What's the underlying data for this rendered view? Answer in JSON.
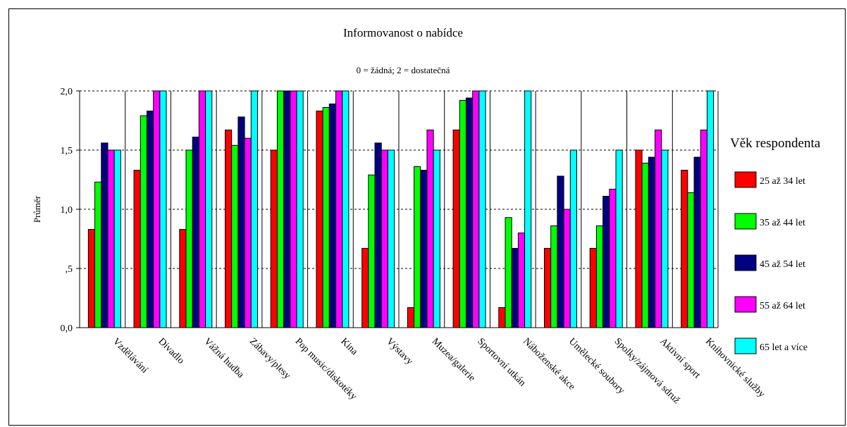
{
  "chart_data": {
    "type": "bar",
    "title": "Informovanost o nabídce",
    "subtitle": "0 = žádná; 2 = dostatečná",
    "ylabel": "Průměr",
    "xlabel": "",
    "ylim": [
      0,
      2
    ],
    "yticks": [
      0,
      0.5,
      1,
      1.5,
      2
    ],
    "ytick_labels": [
      "0,0",
      ",5",
      "1,0",
      "1,5",
      "2,0"
    ],
    "grid": "horizontal-dashed",
    "legend_title": "Věk respondenta",
    "legend_position": "right",
    "categories": [
      "Vzdělávání",
      "Divadlo",
      "Vážná hudba",
      "Zábavy/plesy",
      "Pop music/diskotéky",
      "Kina",
      "Výstavy",
      "Muzea/galerie",
      "Sportovní utkán",
      "Náboženské akce",
      "Umělecké soubory",
      "Spolky/zájmová sdruž",
      "Aktivní sport",
      "Knihovnické služby"
    ],
    "series": [
      {
        "name": "25 až 34 let",
        "color": "#ff0000",
        "values": [
          0.83,
          1.33,
          0.83,
          1.67,
          1.5,
          1.83,
          0.67,
          0.17,
          1.67,
          0.17,
          0.67,
          0.67,
          1.5,
          1.33
        ]
      },
      {
        "name": "35 až 44 let",
        "color": "#00ff00",
        "values": [
          1.23,
          1.79,
          1.5,
          1.54,
          2.0,
          1.86,
          1.29,
          1.36,
          1.92,
          0.93,
          0.86,
          0.86,
          1.39,
          1.14
        ]
      },
      {
        "name": "45 až 54 let",
        "color": "#000080",
        "values": [
          1.56,
          1.83,
          1.61,
          1.78,
          2.0,
          1.89,
          1.56,
          1.33,
          1.94,
          0.67,
          1.28,
          1.11,
          1.44,
          1.44
        ]
      },
      {
        "name": "55 až 64 let",
        "color": "#ff00ff",
        "values": [
          1.5,
          2.0,
          2.0,
          1.6,
          2.0,
          2.0,
          1.5,
          1.67,
          2.0,
          0.8,
          1.0,
          1.17,
          1.67,
          1.67
        ]
      },
      {
        "name": "65 let a více",
        "color": "#00ffff",
        "values": [
          1.5,
          2.0,
          2.0,
          2.0,
          2.0,
          2.0,
          1.5,
          1.5,
          2.0,
          2.0,
          1.5,
          1.5,
          1.5,
          2.0
        ]
      }
    ]
  }
}
